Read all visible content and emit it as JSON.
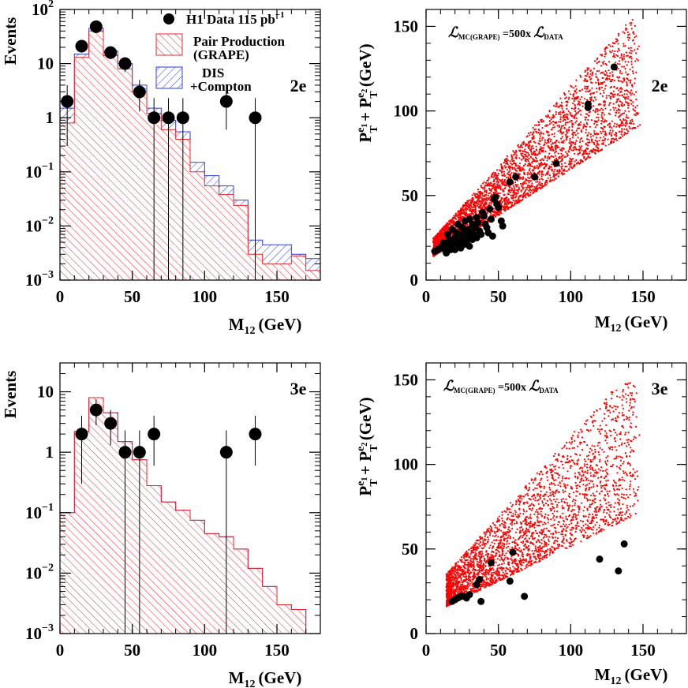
{
  "colors": {
    "grape": "#e8262a",
    "dis": "#2b3fe0",
    "data": "#000000",
    "scatter": "#ff0000"
  },
  "chart_data": [
    {
      "id": "hist-2e",
      "type": "bar",
      "label": "2e",
      "ylabel": "Events",
      "xlabel": "M",
      "xlabel_sub": "12",
      "xlabel_unit": "(GeV)",
      "xlim": [
        0,
        180
      ],
      "ylim": [
        0.001,
        100
      ],
      "yscale": "log",
      "xticks": [
        0,
        50,
        100,
        150
      ],
      "yticks": [
        {
          "value": 100,
          "base": "10",
          "exp": "2"
        },
        {
          "value": 10,
          "base": "10",
          "exp": ""
        },
        {
          "value": 1,
          "base": "1",
          "exp": ""
        },
        {
          "value": 0.1,
          "base": "10",
          "exp": "−1"
        },
        {
          "value": 0.01,
          "base": "10",
          "exp": "−2"
        },
        {
          "value": 0.001,
          "base": "10",
          "exp": "−3"
        }
      ],
      "bin_width": 10,
      "bin_starts": [
        0,
        10,
        20,
        30,
        40,
        50,
        60,
        70,
        80,
        90,
        100,
        110,
        120,
        130,
        140,
        150,
        160,
        170
      ],
      "grape": [
        0.8,
        13,
        40,
        14,
        8,
        3.0,
        1.2,
        0.6,
        0.4,
        0.1,
        0.055,
        0.038,
        0.024,
        0.003,
        0.002,
        0.002,
        0.0028,
        0.0015
      ],
      "total": [
        1.5,
        15,
        45,
        17,
        10,
        4.0,
        1.5,
        0.9,
        0.55,
        0.15,
        0.085,
        0.055,
        0.03,
        0.0055,
        0.0045,
        0.0045,
        0.003,
        0.0025
      ],
      "data": [
        {
          "x": 5,
          "y": 2,
          "lo": 0.3,
          "hi": 4
        },
        {
          "x": 15,
          "y": 21,
          "lo": 16,
          "hi": 26
        },
        {
          "x": 25,
          "y": 48,
          "lo": 41,
          "hi": 55
        },
        {
          "x": 35,
          "y": 16,
          "lo": 12,
          "hi": 20
        },
        {
          "x": 45,
          "y": 10,
          "lo": 7,
          "hi": 13
        },
        {
          "x": 55,
          "y": 3,
          "lo": 1.3,
          "hi": 5
        },
        {
          "x": 65,
          "y": 1,
          "lo": 0.001,
          "hi": 2.3
        },
        {
          "x": 75,
          "y": 1,
          "lo": 0.001,
          "hi": 2.3
        },
        {
          "x": 85,
          "y": 1,
          "lo": 0.001,
          "hi": 2.3
        },
        {
          "x": 115,
          "y": 2,
          "lo": 0.6,
          "hi": 4
        },
        {
          "x": 135,
          "y": 1,
          "lo": 0.001,
          "hi": 2.3
        }
      ],
      "legend": [
        {
          "kind": "data",
          "text": "H1 Data 115 pb",
          "sup": "−1"
        },
        {
          "kind": "grape",
          "text": "Pair Production",
          "text2": "(GRAPE)"
        },
        {
          "kind": "dis",
          "text": "DIS",
          "text2": "+Compton"
        }
      ]
    },
    {
      "id": "scatter-2e",
      "type": "scatter",
      "label": "2e",
      "ylabel": "P",
      "xlabel": "M",
      "xlabel_sub": "12",
      "xlabel_unit": "(GeV)",
      "xlim": [
        0,
        180
      ],
      "ylim": [
        0,
        160
      ],
      "xticks": [
        0,
        50,
        100,
        150
      ],
      "yticks": [
        0,
        50,
        100,
        150
      ],
      "annotation": {
        "lhs": "MC(GRAPE)",
        "mid": " =500x ",
        "rhs": "DATA"
      },
      "mc_model": {
        "n": 3800,
        "x_center": 0.33,
        "x_spread": 0.32,
        "x_min": 5,
        "x_max": 170,
        "y_floor": 14,
        "slope_low": 0.72,
        "slope_high": 0.95,
        "y_max": 158,
        "seed": 7
      },
      "data": [
        [
          6,
          17
        ],
        [
          8,
          18
        ],
        [
          10,
          19
        ],
        [
          12,
          22
        ],
        [
          13,
          18
        ],
        [
          14,
          16
        ],
        [
          15,
          20
        ],
        [
          15,
          27
        ],
        [
          16,
          24
        ],
        [
          17,
          18
        ],
        [
          18,
          30
        ],
        [
          18,
          22
        ],
        [
          19,
          21
        ],
        [
          20,
          25
        ],
        [
          20,
          18
        ],
        [
          21,
          28
        ],
        [
          22,
          20
        ],
        [
          22,
          33
        ],
        [
          23,
          23
        ],
        [
          24,
          27
        ],
        [
          24,
          19
        ],
        [
          25,
          31
        ],
        [
          25,
          24
        ],
        [
          26,
          21
        ],
        [
          27,
          29
        ],
        [
          27,
          35
        ],
        [
          28,
          25
        ],
        [
          28,
          22
        ],
        [
          29,
          30
        ],
        [
          30,
          26
        ],
        [
          30,
          20
        ],
        [
          30,
          36
        ],
        [
          31,
          28
        ],
        [
          32,
          33
        ],
        [
          32,
          24
        ],
        [
          33,
          27
        ],
        [
          34,
          31
        ],
        [
          35,
          25
        ],
        [
          35,
          37
        ],
        [
          36,
          34
        ],
        [
          37,
          29
        ],
        [
          38,
          27
        ],
        [
          39,
          40
        ],
        [
          40,
          38
        ],
        [
          41,
          33
        ],
        [
          42,
          31
        ],
        [
          43,
          28
        ],
        [
          44,
          42
        ],
        [
          45,
          36
        ],
        [
          46,
          26
        ],
        [
          47,
          48
        ],
        [
          48,
          49
        ],
        [
          49,
          45
        ],
        [
          50,
          43
        ],
        [
          52,
          35
        ],
        [
          53,
          32
        ],
        [
          58,
          58
        ],
        [
          62,
          61
        ],
        [
          75,
          61
        ],
        [
          90,
          69
        ],
        [
          112,
          102
        ],
        [
          112,
          104
        ],
        [
          130,
          126
        ]
      ]
    },
    {
      "id": "hist-3e",
      "type": "bar",
      "label": "3e",
      "ylabel": "Events",
      "xlabel": "M",
      "xlabel_sub": "12",
      "xlabel_unit": "(GeV)",
      "xlim": [
        0,
        180
      ],
      "ylim": [
        0.001,
        30
      ],
      "yscale": "log",
      "xticks": [
        0,
        50,
        100,
        150
      ],
      "yticks": [
        {
          "value": 10,
          "base": "10",
          "exp": ""
        },
        {
          "value": 1,
          "base": "1",
          "exp": ""
        },
        {
          "value": 0.1,
          "base": "10",
          "exp": "−1"
        },
        {
          "value": 0.01,
          "base": "10",
          "exp": "−2"
        },
        {
          "value": 0.001,
          "base": "10",
          "exp": "−3"
        }
      ],
      "bin_width": 10,
      "bin_starts": [
        0,
        10,
        20,
        30,
        40,
        50,
        60,
        70,
        80,
        90,
        100,
        110,
        120,
        130,
        140,
        150,
        160
      ],
      "grape": [
        0.1,
        2.2,
        8,
        4.5,
        1.5,
        0.75,
        0.28,
        0.15,
        0.11,
        0.075,
        0.045,
        0.04,
        0.025,
        0.012,
        0.006,
        0.003,
        0.0025
      ],
      "total": [
        0.1,
        2.2,
        8,
        4.5,
        1.5,
        0.75,
        0.28,
        0.15,
        0.11,
        0.075,
        0.045,
        0.04,
        0.025,
        0.012,
        0.006,
        0.003,
        0.0025
      ],
      "data": [
        {
          "x": 15,
          "y": 2,
          "lo": 0.3,
          "hi": 4
        },
        {
          "x": 25,
          "y": 5,
          "lo": 2.8,
          "hi": 7.5
        },
        {
          "x": 35,
          "y": 3,
          "lo": 1.3,
          "hi": 5
        },
        {
          "x": 45,
          "y": 1,
          "lo": 0.001,
          "hi": 2.3
        },
        {
          "x": 55,
          "y": 1,
          "lo": 0.001,
          "hi": 2.3
        },
        {
          "x": 65,
          "y": 2,
          "lo": 0.6,
          "hi": 4
        },
        {
          "x": 115,
          "y": 1,
          "lo": 0.001,
          "hi": 2.3
        },
        {
          "x": 135,
          "y": 2,
          "lo": 0.6,
          "hi": 4
        }
      ]
    },
    {
      "id": "scatter-3e",
      "type": "scatter",
      "label": "3e",
      "ylabel": "P",
      "xlabel": "M",
      "xlabel_sub": "12",
      "xlabel_unit": "(GeV)",
      "xlim": [
        0,
        180
      ],
      "ylim": [
        0,
        160
      ],
      "xticks": [
        0,
        50,
        100,
        150
      ],
      "yticks": [
        0,
        50,
        100,
        150
      ],
      "annotation": {
        "lhs": "MC(GRAPE)",
        "mid": " =500x ",
        "rhs": "DATA"
      },
      "mc_model": {
        "n": 3000,
        "x_center": 0.36,
        "x_spread": 0.36,
        "x_min": 14,
        "x_max": 168,
        "y_floor": 16,
        "slope_low": 0.55,
        "slope_high": 0.95,
        "y_max": 150,
        "seed": 13
      },
      "data": [
        [
          18,
          19
        ],
        [
          20,
          20
        ],
        [
          22,
          21
        ],
        [
          24,
          22
        ],
        [
          26,
          22
        ],
        [
          28,
          21
        ],
        [
          30,
          23
        ],
        [
          35,
          29
        ],
        [
          37,
          32
        ],
        [
          38,
          19
        ],
        [
          45,
          42
        ],
        [
          58,
          31
        ],
        [
          60,
          48
        ],
        [
          68,
          22
        ],
        [
          120,
          44
        ],
        [
          133,
          37
        ],
        [
          137,
          53
        ]
      ]
    }
  ]
}
